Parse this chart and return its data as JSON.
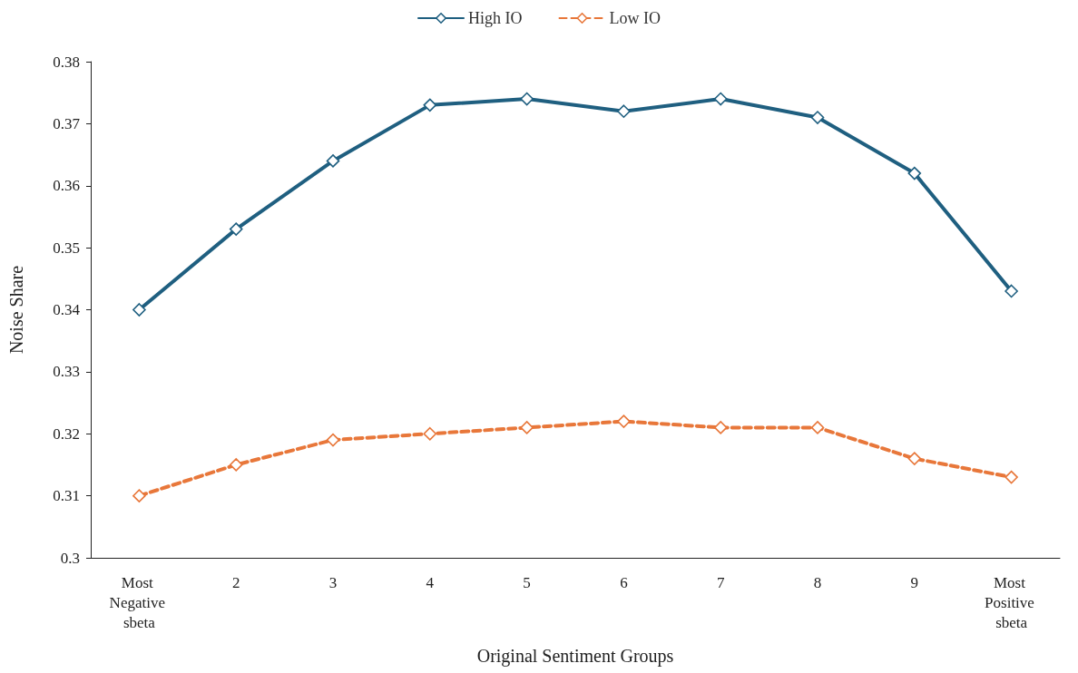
{
  "chart_data": {
    "type": "line",
    "xlabel": "Original Sentiment Groups",
    "ylabel": "Noise Share",
    "categories": [
      "Most Negative sbeta",
      "2",
      "3",
      "4",
      "5",
      "6",
      "7",
      "8",
      "9",
      "Most Positive sbeta"
    ],
    "series": [
      {
        "name": "High IO",
        "color": "#1f5f80",
        "line_style": "solid",
        "values": [
          0.34,
          0.353,
          0.364,
          0.373,
          0.374,
          0.372,
          0.374,
          0.371,
          0.362,
          0.343
        ]
      },
      {
        "name": "Low IO",
        "color": "#e8773a",
        "line_style": "dashed",
        "values": [
          0.31,
          0.315,
          0.319,
          0.32,
          0.321,
          0.322,
          0.321,
          0.321,
          0.316,
          0.313
        ]
      }
    ],
    "ylim": [
      0.3,
      0.38
    ],
    "yticks": [
      0.3,
      0.31,
      0.32,
      0.33,
      0.34,
      0.35,
      0.36,
      0.37,
      0.38
    ],
    "grid": false,
    "legend": "top",
    "marker": "diamond"
  }
}
